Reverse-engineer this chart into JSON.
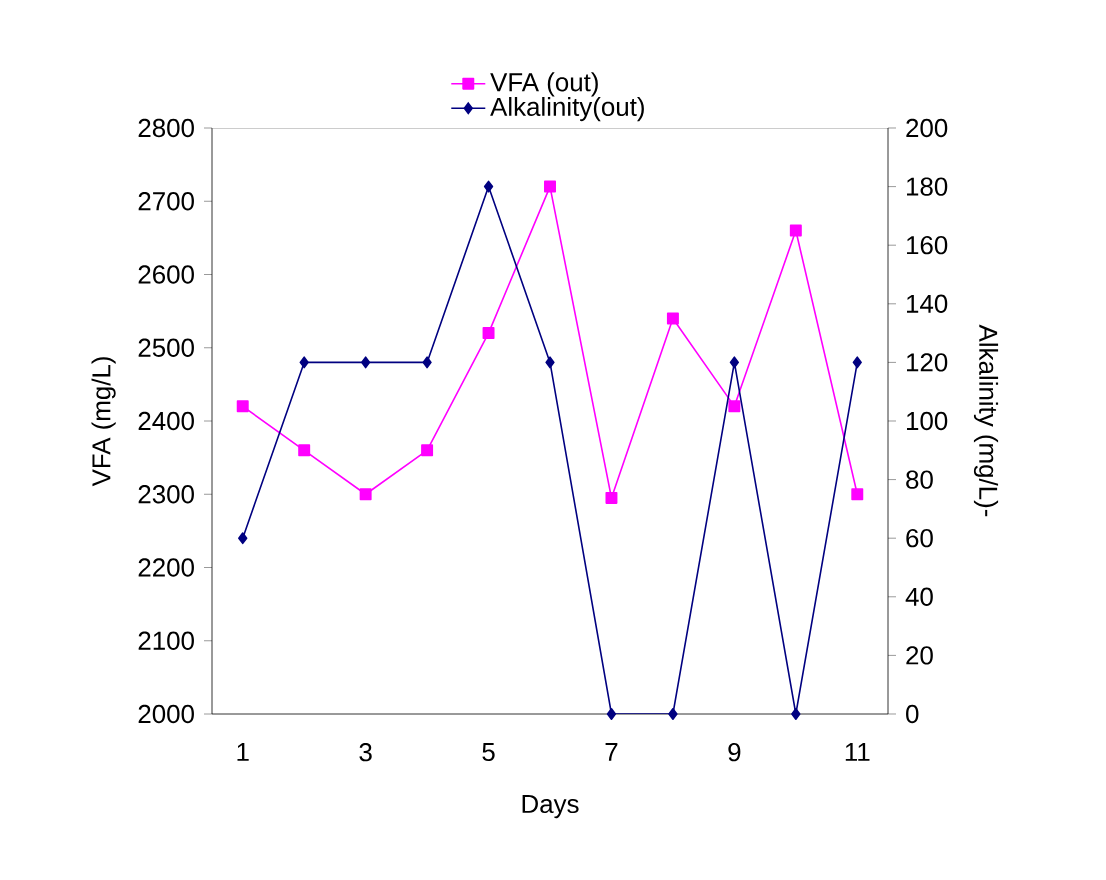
{
  "chart_data": {
    "type": "line",
    "xlabel": "Days",
    "ylabel": "VFA (mg/L)",
    "y2label": "Alkalinity (mg/L)-",
    "categories": [
      "1",
      null,
      "3",
      null,
      "5",
      null,
      "7",
      null,
      "9",
      null,
      "11"
    ],
    "series": [
      {
        "name": "VFA (out)",
        "color": "#ff00ff",
        "marker": "square",
        "values": [
          2420,
          2360,
          2300,
          2360,
          2520,
          2720,
          2295,
          2540,
          2420,
          2660,
          2300
        ]
      },
      {
        "name": "Alkalinity(out)",
        "color": "#000080",
        "marker": "diamond",
        "axis": "y2",
        "values": [
          60,
          120,
          120,
          120,
          180,
          120,
          0,
          0,
          120,
          0,
          120
        ]
      }
    ],
    "ylim": [
      2000,
      2800
    ],
    "yticks": [
      2000,
      2100,
      2200,
      2300,
      2400,
      2500,
      2600,
      2700,
      2800
    ],
    "y2lim": [
      0,
      200
    ],
    "y2ticks": [
      0,
      20,
      40,
      60,
      80,
      100,
      120,
      140,
      160,
      180,
      200
    ],
    "grid": false,
    "legend": "top",
    "line_style": "solid"
  }
}
